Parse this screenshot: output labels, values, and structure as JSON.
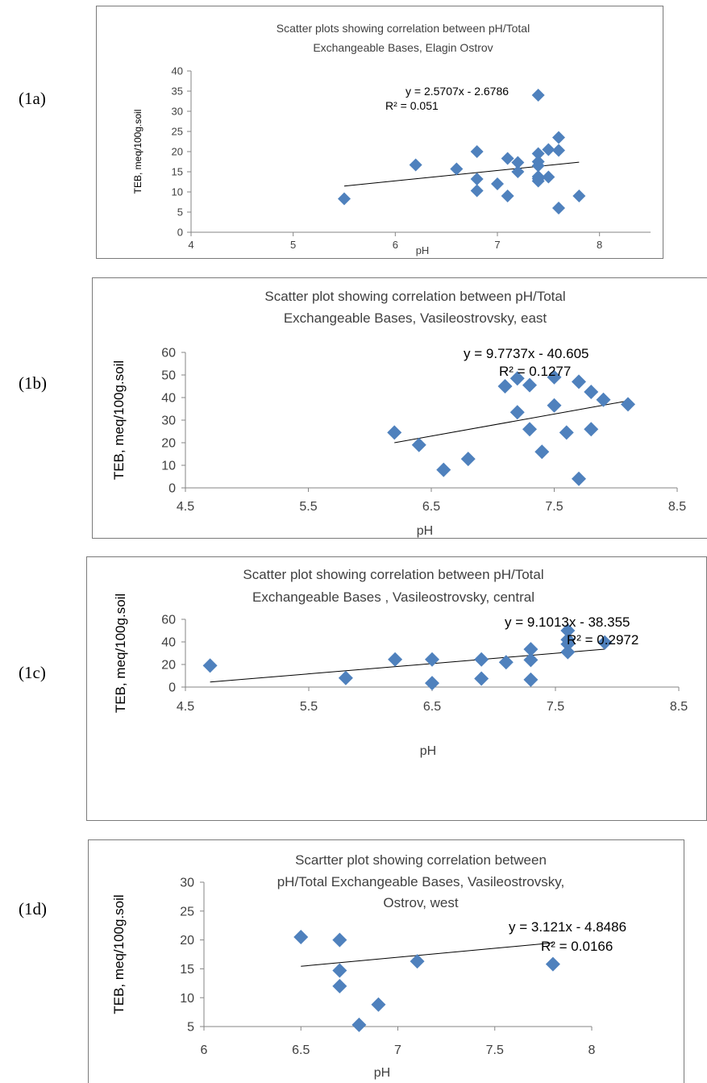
{
  "panels": [
    {
      "label": "(1a)"
    },
    {
      "label": "(1b)"
    },
    {
      "label": "(1c)"
    },
    {
      "label": "(1d)"
    }
  ],
  "chart_data": [
    {
      "type": "scatter",
      "title_lines": [
        "Scatter plots showing correlation between  pH/Total",
        "Exchangeable Bases,  Elagin Ostrov"
      ],
      "xlabel": "pH",
      "ylabel": "TEB, meq/100g.soil",
      "xlim": [
        4,
        8.5
      ],
      "ylim": [
        0,
        40
      ],
      "x_ticks": [
        "4",
        "5",
        "6",
        "7",
        "8"
      ],
      "y_ticks": [
        "0",
        "5",
        "10",
        "15",
        "20",
        "25",
        "30",
        "35",
        "40"
      ],
      "equation": "y = 2.5707x - 2.6786",
      "r_squared": "R² = 0.051",
      "trend": {
        "slope": 2.5707,
        "intercept": -2.6786,
        "x_range": [
          5.5,
          7.8
        ]
      },
      "marker_color": "#4F81BD",
      "x": [
        5.5,
        6.2,
        6.6,
        6.8,
        6.8,
        6.8,
        7.0,
        7.1,
        7.1,
        7.2,
        7.2,
        7.4,
        7.4,
        7.4,
        7.4,
        7.4,
        7.4,
        7.4,
        7.5,
        7.5,
        7.6,
        7.6,
        7.6,
        7.8
      ],
      "y": [
        8.3,
        16.7,
        15.7,
        20.0,
        13.2,
        10.3,
        12.0,
        9.0,
        18.3,
        15.0,
        17.3,
        34.0,
        19.5,
        17.5,
        16.5,
        13.8,
        13.3,
        12.7,
        20.5,
        13.7,
        23.5,
        20.3,
        6.0,
        9.0
      ]
    },
    {
      "type": "scatter",
      "title_lines": [
        "Scatter plot showing correlation between  pH/Total",
        "Exchangeable Bases,  Vasileostrovsky, east"
      ],
      "xlabel": "pH",
      "ylabel": "TEB, meq/100g.soil",
      "xlim": [
        4.5,
        8.5
      ],
      "ylim": [
        0,
        60
      ],
      "x_ticks": [
        "4.5",
        "5.5",
        "6.5",
        "7.5",
        "8.5"
      ],
      "y_ticks": [
        "0",
        "10",
        "20",
        "30",
        "40",
        "50",
        "60"
      ],
      "equation": "y = 9.7737x - 40.605",
      "r_squared": "R² = 0.1277",
      "trend": {
        "slope": 9.7737,
        "intercept": -40.605,
        "x_range": [
          6.2,
          8.1
        ]
      },
      "marker_color": "#4F81BD",
      "x": [
        6.2,
        6.4,
        6.6,
        6.8,
        7.1,
        7.2,
        7.2,
        7.3,
        7.3,
        7.4,
        7.5,
        7.5,
        7.6,
        7.7,
        7.7,
        7.8,
        7.8,
        7.9,
        8.1
      ],
      "y": [
        24.5,
        19.0,
        8.0,
        12.8,
        45.0,
        48.5,
        33.5,
        45.5,
        26.0,
        16.0,
        49.0,
        36.5,
        24.5,
        47.0,
        4.0,
        42.5,
        26.0,
        39.0,
        37.0
      ]
    },
    {
      "type": "scatter",
      "title_lines": [
        "Scatter plot showing correlation  between  pH/Total",
        "Exchangeable Bases , Vasileostrovsky, central"
      ],
      "xlabel": "pH",
      "ylabel": "TEB, meq/100g.soil",
      "xlim": [
        4.5,
        8.5
      ],
      "ylim": [
        0,
        60
      ],
      "x_ticks": [
        "4.5",
        "5.5",
        "6.5",
        "7.5",
        "8.5"
      ],
      "y_ticks": [
        "0",
        "20",
        "40",
        "60"
      ],
      "equation": "y = 9.1013x - 38.355",
      "r_squared": "R² = 0.2972",
      "trend": {
        "slope": 9.1013,
        "intercept": -38.355,
        "x_range": [
          4.7,
          7.9
        ]
      },
      "marker_color": "#4F81BD",
      "x": [
        4.7,
        5.8,
        6.2,
        6.5,
        6.5,
        6.9,
        6.9,
        7.1,
        7.3,
        7.3,
        7.3,
        7.6,
        7.6,
        7.6,
        7.6,
        7.9
      ],
      "y": [
        19.0,
        8.0,
        24.5,
        24.5,
        3.5,
        24.5,
        7.5,
        22.0,
        33.5,
        24.0,
        6.5,
        50.0,
        42.0,
        38.0,
        31.0,
        39.5
      ]
    },
    {
      "type": "scatter",
      "title_lines": [
        "Scartter plot showing correlation  between",
        "pH/Total Exchangeable Bases, Vasileostrovsky,",
        "Ostrov, west"
      ],
      "xlabel": "pH",
      "ylabel": "TEB, meq/100g.soil",
      "xlim": [
        6,
        8
      ],
      "ylim": [
        5,
        30
      ],
      "x_ticks": [
        "6",
        "6.5",
        "7",
        "7.5",
        "8"
      ],
      "y_ticks": [
        "5",
        "10",
        "15",
        "20",
        "25",
        "30"
      ],
      "equation": "y = 3.121x - 4.8486",
      "r_squared": "R² = 0.0166",
      "trend": {
        "slope": 3.121,
        "intercept": -4.8486,
        "x_range": [
          6.5,
          7.8
        ]
      },
      "marker_color": "#4F81BD",
      "x": [
        6.5,
        6.7,
        6.7,
        6.7,
        6.8,
        6.9,
        7.1,
        7.8
      ],
      "y": [
        20.5,
        20.0,
        14.7,
        12.0,
        5.3,
        8.8,
        16.3,
        15.8
      ]
    }
  ]
}
